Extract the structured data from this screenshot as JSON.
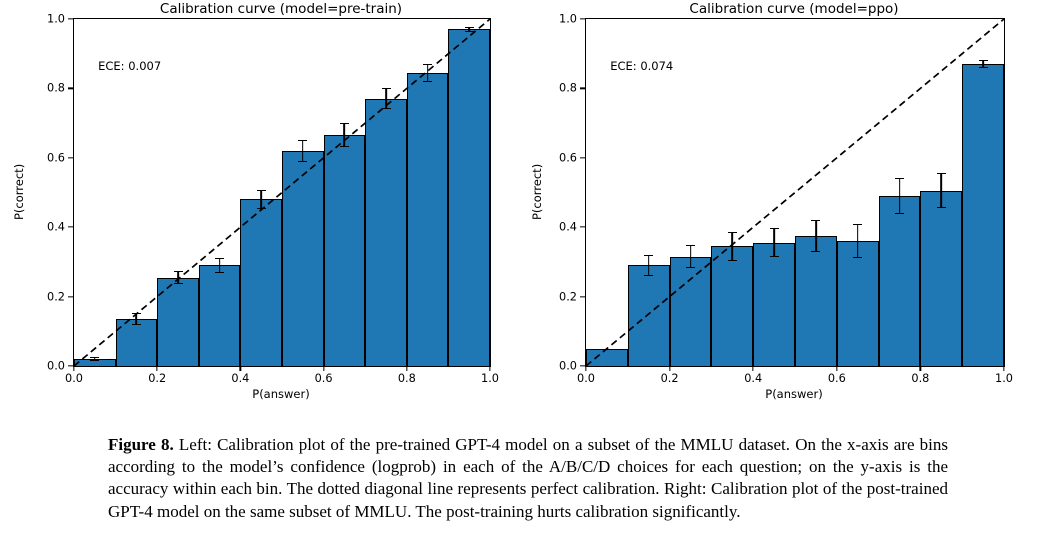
{
  "page": {
    "background": "#ffffff"
  },
  "caption": {
    "label": "Figure 8.",
    "text": " Left: Calibration plot of the pre-trained GPT-4 model on a subset of the MMLU dataset. On the x-axis are bins according to the model’s confidence (logprob) in each of the A/B/C/D choices for each question; on the y-axis is the accuracy within each bin. The dotted diagonal line represents perfect calibration. Right: Calibration plot of the post-trained GPT-4 model on the same subset of MMLU. The post-training hurts calibration significantly."
  },
  "chart_data": [
    {
      "type": "bar",
      "title": "Calibration curve (model=pre-train)",
      "annotation": "ECE: 0.007",
      "xlabel": "P(answer)",
      "ylabel": "P(correct)",
      "xlim": [
        0.0,
        1.0
      ],
      "ylim": [
        0.0,
        1.0
      ],
      "xtick_labels": [
        "0.0",
        "0.2",
        "0.4",
        "0.6",
        "0.8",
        "1.0"
      ],
      "ytick_labels": [
        "0.0",
        "0.2",
        "0.4",
        "0.6",
        "0.8",
        "1.0"
      ],
      "bin_width": 0.1,
      "bin_centers": [
        0.05,
        0.15,
        0.25,
        0.35,
        0.45,
        0.55,
        0.65,
        0.75,
        0.85,
        0.95
      ],
      "values": [
        0.02,
        0.135,
        0.255,
        0.29,
        0.48,
        0.62,
        0.665,
        0.77,
        0.845,
        0.97
      ],
      "errors": [
        0.005,
        0.017,
        0.02,
        0.022,
        0.028,
        0.032,
        0.034,
        0.03,
        0.026,
        0.008
      ],
      "diagonal_line": "perfect calibration (dashed, 0,0 to 1,1)",
      "bar_color": "#1f77b4",
      "edge_color": "#000000",
      "grid": false,
      "legend": "none"
    },
    {
      "type": "bar",
      "title": "Calibration curve (model=ppo)",
      "annotation": "ECE: 0.074",
      "xlabel": "P(answer)",
      "ylabel": "P(correct)",
      "xlim": [
        0.0,
        1.0
      ],
      "ylim": [
        0.0,
        1.0
      ],
      "xtick_labels": [
        "0.0",
        "0.2",
        "0.4",
        "0.6",
        "0.8",
        "1.0"
      ],
      "ytick_labels": [
        "0.0",
        "0.2",
        "0.4",
        "0.6",
        "0.8",
        "1.0"
      ],
      "bin_width": 0.1,
      "bin_centers": [
        0.05,
        0.15,
        0.25,
        0.35,
        0.45,
        0.55,
        0.65,
        0.75,
        0.85,
        0.95
      ],
      "values": [
        0.05,
        0.29,
        0.315,
        0.345,
        0.355,
        0.375,
        0.36,
        0.49,
        0.505,
        0.87
      ],
      "errors": [
        0,
        0.031,
        0.034,
        0.042,
        0.042,
        0.047,
        0.048,
        0.052,
        0.05,
        0.012
      ],
      "diagonal_line": "perfect calibration (dashed, 0,0 to 1,1)",
      "bar_color": "#1f77b4",
      "edge_color": "#000000",
      "grid": false,
      "legend": "none"
    }
  ]
}
